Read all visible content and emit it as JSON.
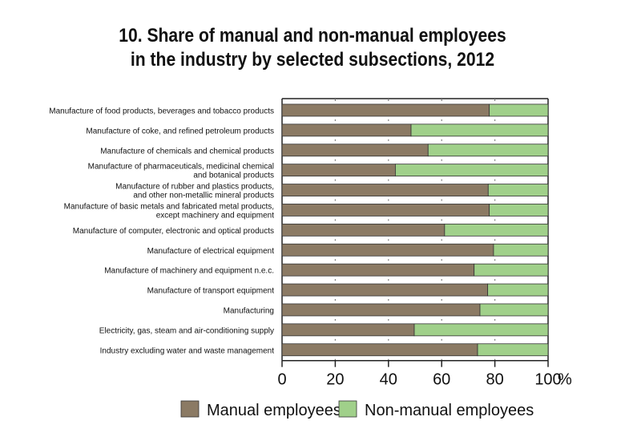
{
  "chart_data": {
    "type": "bar",
    "stacked": true,
    "orientation": "horizontal",
    "title_lines": [
      "10.  Share of manual and non-manual employees",
      "in the industry by selected subsections, 2012"
    ],
    "categories": [
      [
        "Manufacture of food products, beverages and tobacco products"
      ],
      [
        "Manufacture of coke, and refined petroleum products"
      ],
      [
        "Manufacture of chemicals and chemical products"
      ],
      [
        "Manufacture of pharmaceuticals, medicinal chemical",
        "and botanical products"
      ],
      [
        "Manufacture of rubber and plastics products,",
        "and other non-metallic mineral products"
      ],
      [
        "Manufacture of basic metals and fabricated metal products,",
        "except machinery and equipment"
      ],
      [
        "Manufacture of computer, electronic  and optical products"
      ],
      [
        "Manufacture of electrical equipment"
      ],
      [
        "Manufacture of machinery and equipment n.e.c."
      ],
      [
        "Manufacture of transport equipment"
      ],
      [
        "Manufacturing"
      ],
      [
        "Electricity, gas, steam and air-conditioning supply"
      ],
      [
        "Industry excluding water and waste management"
      ]
    ],
    "series": [
      {
        "name": "Manual employees",
        "color": "#8b7a64",
        "values": [
          77.9,
          48.5,
          54.9,
          42.6,
          77.5,
          77.9,
          61.1,
          79.5,
          72.2,
          77.3,
          74.4,
          49.7,
          73.5
        ]
      },
      {
        "name": "Non-manual employees",
        "color": "#a0d08a",
        "values": [
          22.1,
          51.5,
          45.1,
          57.4,
          22.5,
          22.1,
          38.9,
          20.5,
          27.8,
          22.7,
          25.6,
          50.3,
          26.5
        ]
      }
    ],
    "xticks": [
      "0",
      "20",
      "40",
      "60",
      "80",
      "100"
    ],
    "xunit": "%",
    "xlim": [
      0,
      100
    ],
    "legend_position": "bottom"
  }
}
